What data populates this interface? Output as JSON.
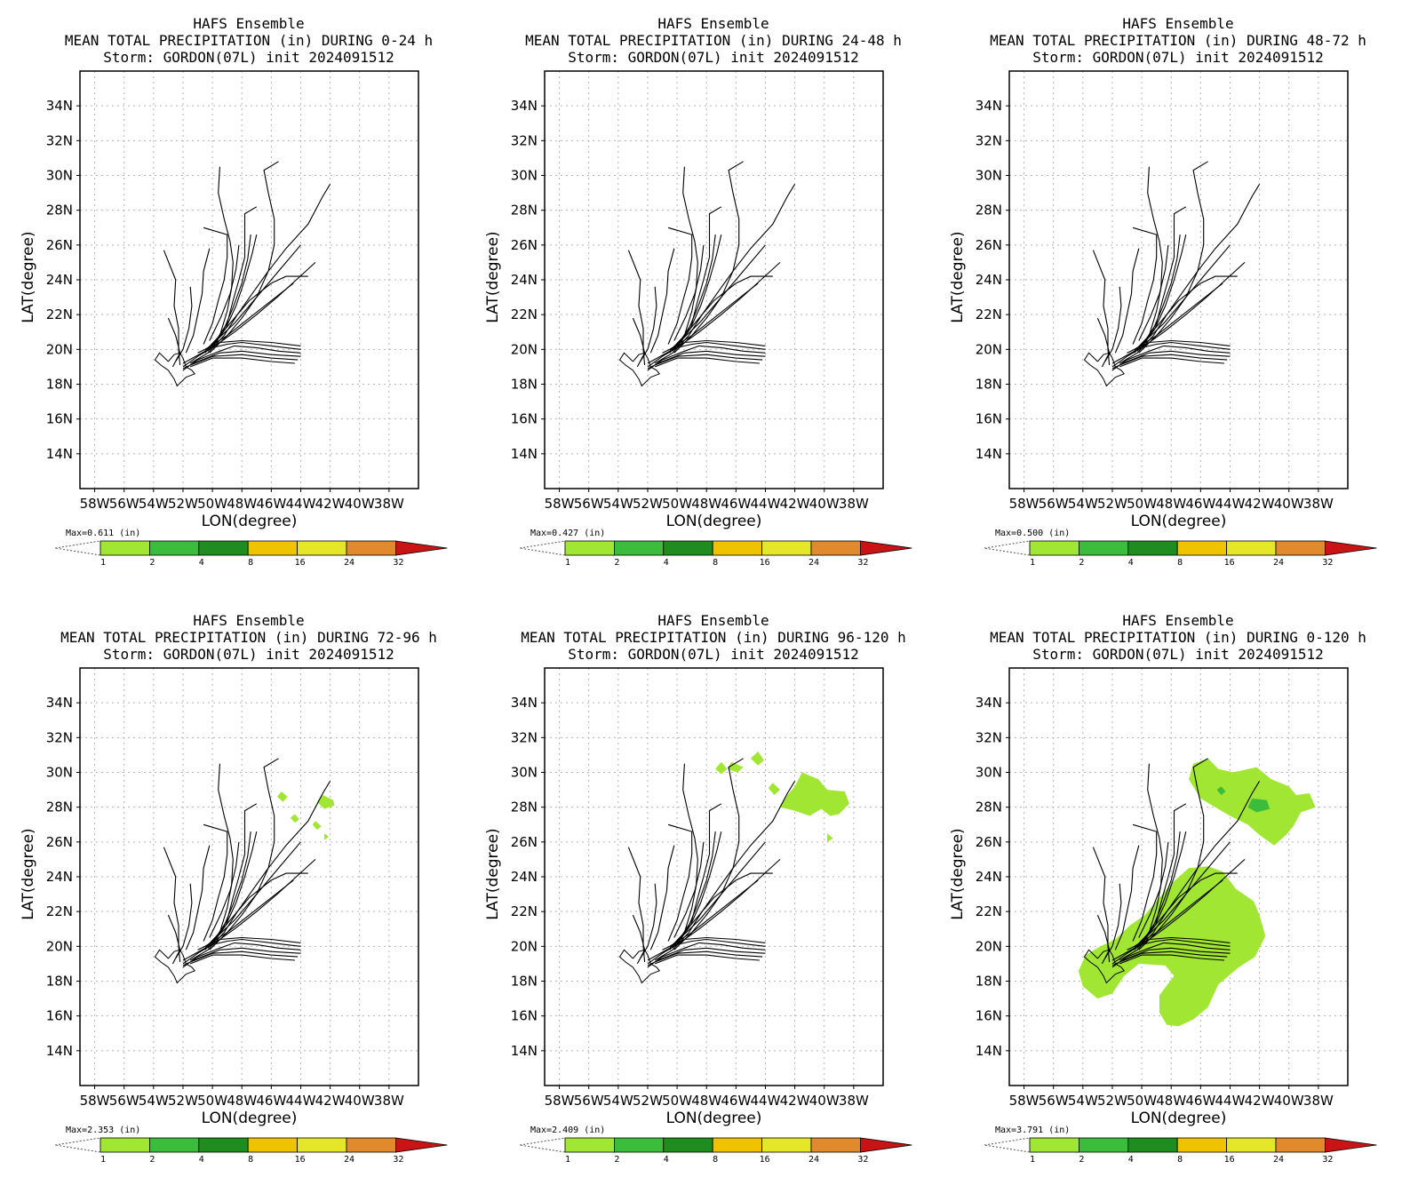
{
  "chart_data": [
    {
      "type": "map",
      "title_lines": [
        "HAFS Ensemble",
        "MEAN TOTAL PRECIPITATION (in) DURING  0-24 h",
        "Storm: GORDON(07L) init 2024091512"
      ],
      "max_label": "Max=0.611  (in)",
      "xlabel": "LON(degree)",
      "ylabel": "LAT(degree)",
      "xlim": [
        -59,
        -36
      ],
      "ylim": [
        12,
        36
      ],
      "precip_level": 0
    },
    {
      "type": "map",
      "title_lines": [
        "HAFS Ensemble",
        "MEAN TOTAL PRECIPITATION (in) DURING 24-48 h",
        "Storm: GORDON(07L) init 2024091512"
      ],
      "max_label": "Max=0.427  (in)",
      "xlabel": "LON(degree)",
      "ylabel": "LAT(degree)",
      "xlim": [
        -59,
        -36
      ],
      "ylim": [
        12,
        36
      ],
      "precip_level": 0
    },
    {
      "type": "map",
      "title_lines": [
        "HAFS Ensemble",
        "MEAN TOTAL PRECIPITATION (in) DURING 48-72 h",
        "Storm: GORDON(07L) init 2024091512"
      ],
      "max_label": "Max=0.500  (in)",
      "xlabel": "LON(degree)",
      "ylabel": "LAT(degree)",
      "xlim": [
        -59,
        -36
      ],
      "ylim": [
        12,
        36
      ],
      "precip_level": 0
    },
    {
      "type": "map",
      "title_lines": [
        "HAFS Ensemble",
        "MEAN TOTAL PRECIPITATION (in) DURING 72-96 h",
        "Storm: GORDON(07L) init 2024091512"
      ],
      "max_label": "Max=2.353  (in)",
      "xlabel": "LON(degree)",
      "ylabel": "LAT(degree)",
      "xlim": [
        -59,
        -36
      ],
      "ylim": [
        12,
        36
      ],
      "precip_level": 1
    },
    {
      "type": "map",
      "title_lines": [
        "HAFS Ensemble",
        "MEAN TOTAL PRECIPITATION (in) DURING 96-120 h",
        "Storm: GORDON(07L) init 2024091512"
      ],
      "max_label": "Max=2.409  (in)",
      "xlabel": "LON(degree)",
      "ylabel": "LAT(degree)",
      "xlim": [
        -59,
        -36
      ],
      "ylim": [
        12,
        36
      ],
      "precip_level": 2
    },
    {
      "type": "map",
      "title_lines": [
        "HAFS Ensemble",
        "MEAN TOTAL PRECIPITATION (in) DURING 0-120 h",
        "Storm: GORDON(07L) init 2024091512"
      ],
      "max_label": "Max=3.791  (in)",
      "xlabel": "LON(degree)",
      "ylabel": "LAT(degree)",
      "xlim": [
        -59,
        -36
      ],
      "ylim": [
        12,
        36
      ],
      "precip_level": 3
    }
  ],
  "lat_ticks": [
    14,
    16,
    18,
    20,
    22,
    24,
    26,
    28,
    30,
    32,
    34
  ],
  "lat_tick_labels": [
    "14N",
    "16N",
    "18N",
    "20N",
    "22N",
    "24N",
    "26N",
    "28N",
    "30N",
    "32N",
    "34N"
  ],
  "lon_ticks": [
    -58,
    -56,
    -54,
    -52,
    -50,
    -48,
    -46,
    -44,
    -42,
    -40,
    -38
  ],
  "lon_tick_labels": [
    "58W",
    "56W",
    "54W",
    "52W",
    "50W",
    "48W",
    "46W",
    "44W",
    "42W",
    "40W",
    "38W"
  ],
  "colorbar": {
    "levels": [
      "1",
      "2",
      "4",
      "8",
      "16",
      "24",
      "32"
    ],
    "colors": [
      "#a0e632",
      "#3cbc3c",
      "#1e8c1e",
      "#f0c300",
      "#e6e628",
      "#e08a2d",
      "#c81414"
    ]
  },
  "tracks": [
    [
      [
        -44,
        20.0
      ],
      [
        -45,
        20.1
      ],
      [
        -46,
        20.2
      ],
      [
        -47,
        20.3
      ],
      [
        -48,
        20.4
      ],
      [
        -49,
        20.3
      ],
      [
        -50,
        20.1
      ],
      [
        -51,
        19.6
      ],
      [
        -52,
        19.0
      ]
    ],
    [
      [
        -44,
        19.8
      ],
      [
        -45.5,
        19.9
      ],
      [
        -47,
        20.1
      ],
      [
        -48.5,
        20.2
      ],
      [
        -49.5,
        19.9
      ],
      [
        -51,
        19.4
      ],
      [
        -52,
        18.8
      ]
    ],
    [
      [
        -44,
        19.6
      ],
      [
        -46,
        19.7
      ],
      [
        -48,
        19.9
      ],
      [
        -49.5,
        19.8
      ],
      [
        -51,
        19.3
      ],
      [
        -52,
        18.9
      ]
    ],
    [
      [
        -44.2,
        19.4
      ],
      [
        -46,
        19.5
      ],
      [
        -48,
        19.7
      ],
      [
        -50,
        19.6
      ],
      [
        -51.5,
        19.1
      ]
    ],
    [
      [
        -44.4,
        19.2
      ],
      [
        -46,
        19.3
      ],
      [
        -48,
        19.5
      ],
      [
        -50,
        19.5
      ],
      [
        -51.5,
        19.0
      ]
    ],
    [
      [
        -44,
        20.2
      ],
      [
        -46,
        20.4
      ],
      [
        -48,
        20.5
      ],
      [
        -49.5,
        20.4
      ],
      [
        -51,
        19.8
      ]
    ],
    [
      [
        -43.5,
        24.2
      ],
      [
        -45,
        24.2
      ],
      [
        -46,
        23.8
      ],
      [
        -47.5,
        22.8
      ],
      [
        -48.5,
        21.8
      ],
      [
        -49.5,
        20.8
      ],
      [
        -50.5,
        19.9
      ],
      [
        -52,
        19.2
      ]
    ],
    [
      [
        -42,
        29.5
      ],
      [
        -42.5,
        28.8
      ],
      [
        -43.5,
        27.2
      ],
      [
        -45,
        25.8
      ],
      [
        -46.2,
        24.5
      ],
      [
        -47.3,
        23.2
      ],
      [
        -48.3,
        22.0
      ],
      [
        -49.2,
        20.8
      ],
      [
        -50.3,
        19.8
      ],
      [
        -51.5,
        19.2
      ]
    ],
    [
      [
        -45.5,
        30.8
      ],
      [
        -46.5,
        30.3
      ],
      [
        -46.2,
        29.0
      ],
      [
        -45.8,
        27.5
      ],
      [
        -45.8,
        26.0
      ],
      [
        -46.2,
        24.5
      ],
      [
        -47,
        23.0
      ],
      [
        -48,
        21.8
      ],
      [
        -49,
        20.8
      ],
      [
        -50.2,
        19.8
      ]
    ],
    [
      [
        -49.5,
        30.5
      ],
      [
        -49.6,
        29.0
      ],
      [
        -49.2,
        27.5
      ],
      [
        -48.8,
        26.2
      ],
      [
        -48.6,
        25.0
      ],
      [
        -48.7,
        23.5
      ],
      [
        -49,
        22.2
      ],
      [
        -49.5,
        20.8
      ],
      [
        -50.5,
        19.8
      ]
    ],
    [
      [
        -47,
        28.2
      ],
      [
        -47.8,
        27.8
      ],
      [
        -47.8,
        26.5
      ],
      [
        -47.8,
        25.3
      ],
      [
        -48.2,
        24.0
      ],
      [
        -48.6,
        22.8
      ],
      [
        -49,
        21.5
      ],
      [
        -50,
        20.2
      ]
    ],
    [
      [
        -50.6,
        27
      ],
      [
        -49,
        26.6
      ],
      [
        -49,
        25.3
      ],
      [
        -49.2,
        24.0
      ],
      [
        -49.6,
        22.8
      ],
      [
        -50,
        21.5
      ],
      [
        -50.6,
        20.3
      ]
    ],
    [
      [
        -50.2,
        25.8
      ],
      [
        -50.6,
        24.5
      ],
      [
        -50.7,
        23.2
      ],
      [
        -51,
        22.0
      ],
      [
        -51.3,
        20.8
      ],
      [
        -51.8,
        19.8
      ]
    ],
    [
      [
        -53.3,
        25.7
      ],
      [
        -52.5,
        24.0
      ],
      [
        -52.6,
        22.5
      ],
      [
        -52.3,
        21.2
      ],
      [
        -52.3,
        20.0
      ],
      [
        -52.2,
        19.1
      ]
    ],
    [
      [
        -47,
        26.6
      ],
      [
        -47.3,
        25.5
      ],
      [
        -47.8,
        24.0
      ],
      [
        -48.4,
        22.5
      ],
      [
        -49.1,
        21.2
      ],
      [
        -50.1,
        20.0
      ]
    ],
    [
      [
        -47.4,
        26.6
      ],
      [
        -47.6,
        25.2
      ],
      [
        -48,
        23.8
      ],
      [
        -48.6,
        22.4
      ],
      [
        -49.3,
        21.0
      ],
      [
        -50.3,
        19.9
      ]
    ],
    [
      [
        -44,
        26.0
      ],
      [
        -45,
        25.0
      ],
      [
        -46,
        24.0
      ],
      [
        -47.2,
        22.8
      ],
      [
        -48.5,
        21.5
      ],
      [
        -50,
        20.3
      ]
    ],
    [
      [
        -43,
        25.0
      ],
      [
        -44.3,
        24.0
      ],
      [
        -45.6,
        23.0
      ],
      [
        -47,
        22.0
      ],
      [
        -48.5,
        21.0
      ],
      [
        -50,
        20.1
      ]
    ],
    [
      [
        -48.2,
        26.0
      ],
      [
        -48.4,
        24.6
      ],
      [
        -48.8,
        23.2
      ],
      [
        -49.4,
        21.9
      ],
      [
        -50.2,
        20.5
      ]
    ],
    [
      [
        -51.5,
        23.6
      ],
      [
        -51.4,
        22.5
      ],
      [
        -51.6,
        21.2
      ],
      [
        -52,
        20.0
      ],
      [
        -52.5,
        19.3
      ]
    ],
    [
      [
        -53,
        21.8
      ],
      [
        -52.5,
        20.8
      ],
      [
        -52.2,
        19.8
      ],
      [
        -52.7,
        19.0
      ]
    ],
    [
      [
        -44.5,
        23.8
      ],
      [
        -46,
        22.8
      ],
      [
        -47.5,
        21.8
      ],
      [
        -49,
        20.8
      ],
      [
        -50.5,
        20.0
      ]
    ]
  ],
  "land_outline": [
    [
      -53,
      19.3
    ],
    [
      -52.6,
      19.7
    ],
    [
      -52.2,
      19.8
    ],
    [
      -52.0,
      19.5
    ],
    [
      -51.8,
      19.0
    ],
    [
      -51.4,
      18.8
    ],
    [
      -51.2,
      18.6
    ],
    [
      -51.8,
      18.4
    ],
    [
      -52.4,
      17.9
    ],
    [
      -52.6,
      18.3
    ],
    [
      -53,
      18.8
    ],
    [
      -53.5,
      19.1
    ],
    [
      -53.9,
      19.4
    ],
    [
      -53.6,
      19.8
    ],
    [
      -53,
      19.3
    ]
  ],
  "precip_blobs": {
    "p4": [
      {
        "c": "#a0e632",
        "pts": [
          [
            -42.5,
            28.7
          ],
          [
            -41.8,
            28.4
          ],
          [
            -41.7,
            28.1
          ],
          [
            -42.4,
            27.9
          ],
          [
            -42.9,
            28.3
          ]
        ]
      },
      {
        "c": "#a0e632",
        "pts": [
          [
            -45.3,
            28.9
          ],
          [
            -44.9,
            28.6
          ],
          [
            -45.2,
            28.3
          ],
          [
            -45.6,
            28.6
          ]
        ]
      },
      {
        "c": "#a0e632",
        "pts": [
          [
            -43.0,
            27.2
          ],
          [
            -42.6,
            26.9
          ],
          [
            -42.9,
            26.7
          ],
          [
            -43.2,
            27.0
          ]
        ]
      },
      {
        "c": "#a0e632",
        "pts": [
          [
            -42.4,
            26.5
          ],
          [
            -42.1,
            26.3
          ],
          [
            -42.4,
            26.1
          ]
        ]
      },
      {
        "c": "#a0e632",
        "pts": [
          [
            -44.4,
            27.6
          ],
          [
            -44.1,
            27.3
          ],
          [
            -44.4,
            27.1
          ],
          [
            -44.7,
            27.4
          ]
        ]
      }
    ],
    "p5": [
      {
        "c": "#a0e632",
        "pts": [
          [
            -41.5,
            30.0
          ],
          [
            -40.4,
            29.6
          ],
          [
            -39.8,
            29.0
          ],
          [
            -38.6,
            28.9
          ],
          [
            -38.3,
            28.2
          ],
          [
            -39.0,
            27.6
          ],
          [
            -39.6,
            27.5
          ],
          [
            -40.2,
            27.9
          ],
          [
            -41.0,
            27.5
          ],
          [
            -42.0,
            27.8
          ],
          [
            -43.0,
            28.0
          ],
          [
            -42.5,
            28.7
          ],
          [
            -42.0,
            29.2
          ]
        ]
      },
      {
        "c": "#a0e632",
        "pts": [
          [
            -46.3,
            30.6
          ],
          [
            -45.5,
            30.3
          ],
          [
            -45.9,
            30.0
          ],
          [
            -46.6,
            30.2
          ]
        ]
      },
      {
        "c": "#a0e632",
        "pts": [
          [
            -44.5,
            31.2
          ],
          [
            -44.1,
            30.7
          ],
          [
            -44.5,
            30.4
          ],
          [
            -45.0,
            30.8
          ]
        ]
      },
      {
        "c": "#a0e632",
        "pts": [
          [
            -47.0,
            30.6
          ],
          [
            -46.6,
            30.2
          ],
          [
            -47.0,
            29.9
          ],
          [
            -47.4,
            30.2
          ]
        ]
      },
      {
        "c": "#a0e632",
        "pts": [
          [
            -43.5,
            29.4
          ],
          [
            -43.0,
            29.0
          ],
          [
            -43.4,
            28.7
          ],
          [
            -43.8,
            29.1
          ]
        ]
      },
      {
        "c": "#a0e632",
        "pts": [
          [
            -39.8,
            26.5
          ],
          [
            -39.4,
            26.2
          ],
          [
            -39.8,
            26.0
          ]
        ]
      }
    ],
    "p6": [
      {
        "c": "#a0e632",
        "pts": [
          [
            -46.5,
            30.5
          ],
          [
            -45.5,
            30.8
          ],
          [
            -44.8,
            30.2
          ],
          [
            -43.8,
            30.0
          ],
          [
            -42.2,
            30.3
          ],
          [
            -41.2,
            29.6
          ],
          [
            -40.0,
            29.2
          ],
          [
            -39.5,
            28.7
          ],
          [
            -38.6,
            28.8
          ],
          [
            -38.2,
            28.0
          ],
          [
            -39.2,
            27.7
          ],
          [
            -39.7,
            26.9
          ],
          [
            -40.2,
            26.4
          ],
          [
            -41.0,
            25.8
          ],
          [
            -42.0,
            26.4
          ],
          [
            -42.8,
            27.0
          ],
          [
            -44.0,
            27.5
          ],
          [
            -45.0,
            28.0
          ],
          [
            -46.0,
            28.5
          ],
          [
            -46.8,
            29.6
          ]
        ]
      },
      {
        "c": "#3cbc3c",
        "pts": [
          [
            -42.5,
            28.5
          ],
          [
            -41.5,
            28.4
          ],
          [
            -41.3,
            27.9
          ],
          [
            -42.2,
            27.7
          ],
          [
            -42.8,
            28.0
          ]
        ]
      },
      {
        "c": "#3cbc3c",
        "pts": [
          [
            -44.6,
            29.2
          ],
          [
            -44.3,
            28.9
          ],
          [
            -44.6,
            28.7
          ],
          [
            -44.9,
            29.0
          ]
        ]
      },
      {
        "c": "#a0e632",
        "pts": [
          [
            -46.8,
            24.5
          ],
          [
            -45.5,
            24.6
          ],
          [
            -44.5,
            24.3
          ],
          [
            -43.6,
            23.3
          ],
          [
            -42.4,
            22.6
          ],
          [
            -42.0,
            21.8
          ],
          [
            -41.6,
            20.6
          ],
          [
            -42.3,
            19.4
          ],
          [
            -43.4,
            18.8
          ],
          [
            -44.8,
            17.8
          ],
          [
            -45.5,
            16.5
          ],
          [
            -46.5,
            15.8
          ],
          [
            -47.5,
            15.4
          ],
          [
            -48.3,
            15.5
          ],
          [
            -48.8,
            16.2
          ],
          [
            -48.8,
            17.2
          ],
          [
            -47.8,
            18.3
          ],
          [
            -48.4,
            18.9
          ],
          [
            -50.2,
            19.0
          ],
          [
            -51.2,
            18.3
          ],
          [
            -52.0,
            17.3
          ],
          [
            -53.0,
            17.0
          ],
          [
            -54.0,
            17.7
          ],
          [
            -54.3,
            18.6
          ],
          [
            -53.8,
            19.5
          ],
          [
            -52.8,
            20.0
          ],
          [
            -51.8,
            20.4
          ],
          [
            -50.8,
            21.2
          ],
          [
            -49.8,
            21.8
          ],
          [
            -48.8,
            22.8
          ],
          [
            -48.0,
            23.6
          ]
        ]
      }
    ]
  }
}
